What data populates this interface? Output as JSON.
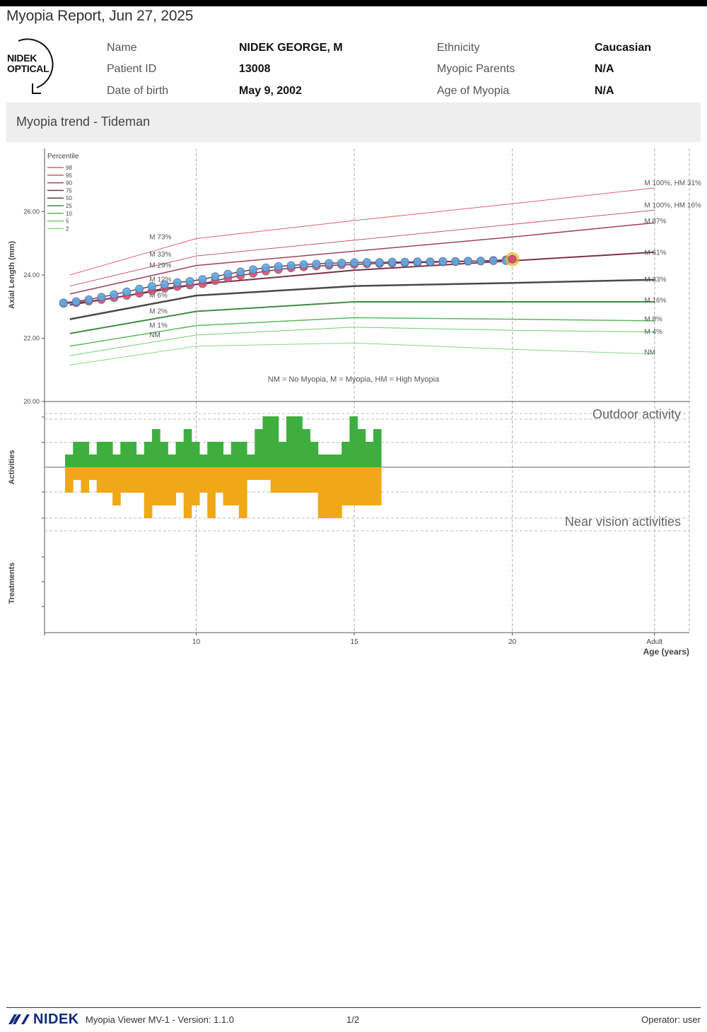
{
  "header": {
    "title": "Myopia Report, Jun 27, 2025",
    "logo_line1": "NIDEK",
    "logo_line2": "OPTICAL"
  },
  "patient": {
    "name_label": "Name",
    "name_value": "NIDEK GEORGE, M",
    "id_label": "Patient ID",
    "id_value": "13008",
    "dob_label": "Date of birth",
    "dob_value": "May 9, 2002",
    "ethnicity_label": "Ethnicity",
    "ethnicity_value": "Caucasian",
    "parents_label": "Myopic Parents",
    "parents_value": "N/A",
    "age_myopia_label": "Age of Myopia",
    "age_myopia_value": "N/A"
  },
  "section": {
    "title": "Myopia trend - Tideman"
  },
  "chart_data": {
    "type": "line",
    "title": "Myopia trend - Tideman",
    "xlabel": "Age (years)",
    "ylabel": "Axial Length (mm)",
    "xlim": [
      5.2,
      25.6
    ],
    "ylim": [
      20,
      28
    ],
    "y_ticks": [
      "20.00",
      "22.00",
      "24.00",
      "26.00"
    ],
    "x_ticks": [
      "10",
      "15",
      "20",
      "Adult"
    ],
    "x_tick_values": [
      10,
      15,
      20,
      24.5
    ],
    "legend_title": "Percentile",
    "legend": [
      "98",
      "95",
      "90",
      "75",
      "50",
      "25",
      "10",
      "5",
      "2"
    ],
    "note": "NM = No Myopia, M = Myopia, HM = High Myopia",
    "percentile_series": [
      {
        "name": "98",
        "color": "#e8606e",
        "width": 1,
        "points": [
          [
            6,
            24.0
          ],
          [
            10,
            25.15
          ],
          [
            15,
            25.72
          ],
          [
            20,
            26.25
          ],
          [
            24.5,
            26.75
          ]
        ]
      },
      {
        "name": "95",
        "color": "#c65a6e",
        "width": 1,
        "points": [
          [
            6,
            23.65
          ],
          [
            10,
            24.6
          ],
          [
            15,
            25.1
          ],
          [
            20,
            25.6
          ],
          [
            24.5,
            26.05
          ]
        ]
      },
      {
        "name": "90",
        "color": "#a04358",
        "width": 1.5,
        "points": [
          [
            6,
            23.4
          ],
          [
            10,
            24.3
          ],
          [
            15,
            24.75
          ],
          [
            20,
            25.2
          ],
          [
            24.5,
            25.65
          ]
        ]
      },
      {
        "name": "75",
        "color": "#7a3346",
        "width": 2,
        "points": [
          [
            6,
            23.05
          ],
          [
            10,
            23.7
          ],
          [
            15,
            24.15
          ],
          [
            20,
            24.45
          ],
          [
            24.5,
            24.72
          ]
        ]
      },
      {
        "name": "50",
        "color": "#4a4a4a",
        "width": 2.5,
        "points": [
          [
            6,
            22.6
          ],
          [
            10,
            23.35
          ],
          [
            15,
            23.65
          ],
          [
            20,
            23.75
          ],
          [
            24.5,
            23.85
          ]
        ]
      },
      {
        "name": "25",
        "color": "#3f8a45",
        "width": 2,
        "points": [
          [
            6,
            22.15
          ],
          [
            10,
            22.85
          ],
          [
            15,
            23.15
          ],
          [
            20,
            23.15
          ],
          [
            24.5,
            23.15
          ]
        ]
      },
      {
        "name": "10",
        "color": "#5cb85c",
        "width": 1.5,
        "points": [
          [
            6,
            21.75
          ],
          [
            10,
            22.4
          ],
          [
            15,
            22.65
          ],
          [
            20,
            22.6
          ],
          [
            24.5,
            22.55
          ]
        ]
      },
      {
        "name": "5",
        "color": "#6fcf6f",
        "width": 1,
        "points": [
          [
            6,
            21.45
          ],
          [
            10,
            22.1
          ],
          [
            15,
            22.35
          ],
          [
            20,
            22.25
          ],
          [
            24.5,
            22.2
          ]
        ]
      },
      {
        "name": "2",
        "color": "#8ad88a",
        "width": 1,
        "points": [
          [
            6,
            21.15
          ],
          [
            10,
            21.75
          ],
          [
            15,
            21.85
          ],
          [
            20,
            21.65
          ],
          [
            24.5,
            21.5
          ]
        ]
      }
    ],
    "left_annotations": [
      {
        "text": "M 73%",
        "x": 9.3,
        "y": 25.2
      },
      {
        "text": "M 33%",
        "x": 9.3,
        "y": 24.65
      },
      {
        "text": "M 29%",
        "x": 9.3,
        "y": 24.3
      },
      {
        "text": "M 12%",
        "x": 9.3,
        "y": 23.85
      },
      {
        "text": "M 6%",
        "x": 9.3,
        "y": 23.35
      },
      {
        "text": "M 2%",
        "x": 9.3,
        "y": 22.85
      },
      {
        "text": "M 1%",
        "x": 9.3,
        "y": 22.4
      },
      {
        "text": "NM",
        "x": 9.3,
        "y": 22.1
      }
    ],
    "right_annotations": [
      {
        "text": "M 100%, HM 31%",
        "x": 24.4,
        "y": 26.9
      },
      {
        "text": "M 100%, HM 16%",
        "x": 24.4,
        "y": 26.2
      },
      {
        "text": "M 87%",
        "x": 24.4,
        "y": 25.7
      },
      {
        "text": "M 61%",
        "x": 24.4,
        "y": 24.7
      },
      {
        "text": "M 33%",
        "x": 24.4,
        "y": 23.85
      },
      {
        "text": "M 16%",
        "x": 24.4,
        "y": 23.2
      },
      {
        "text": "M 8%",
        "x": 24.4,
        "y": 22.6
      },
      {
        "text": "M 4%",
        "x": 24.4,
        "y": 22.2
      },
      {
        "text": "NM",
        "x": 24.4,
        "y": 21.55
      }
    ],
    "measurement_series": [
      {
        "name": "OD",
        "color": "#e74c5e",
        "points": [
          [
            5.8,
            23.1
          ],
          [
            6.2,
            23.12
          ],
          [
            6.6,
            23.17
          ],
          [
            7.0,
            23.22
          ],
          [
            7.4,
            23.28
          ],
          [
            7.8,
            23.35
          ],
          [
            8.2,
            23.42
          ],
          [
            8.6,
            23.5
          ],
          [
            9.0,
            23.58
          ],
          [
            9.4,
            23.63
          ],
          [
            9.8,
            23.68
          ],
          [
            10.2,
            23.72
          ],
          [
            10.6,
            23.82
          ],
          [
            11.0,
            23.9
          ],
          [
            11.4,
            23.98
          ],
          [
            11.8,
            24.05
          ],
          [
            12.2,
            24.12
          ],
          [
            12.6,
            24.17
          ],
          [
            13.0,
            24.22
          ],
          [
            13.4,
            24.25
          ],
          [
            13.8,
            24.28
          ],
          [
            14.2,
            24.3
          ],
          [
            14.6,
            24.32
          ],
          [
            15.0,
            24.33
          ],
          [
            15.4,
            24.35
          ],
          [
            15.8,
            24.36
          ],
          [
            16.2,
            24.37
          ],
          [
            16.6,
            24.38
          ],
          [
            17.0,
            24.39
          ],
          [
            17.4,
            24.4
          ],
          [
            17.8,
            24.41
          ],
          [
            18.2,
            24.42
          ],
          [
            18.6,
            24.43
          ],
          [
            19.0,
            24.44
          ],
          [
            19.4,
            24.46
          ],
          [
            19.8,
            24.48
          ],
          [
            20.0,
            24.5
          ]
        ]
      },
      {
        "name": "OS",
        "color": "#5dade2",
        "points": [
          [
            5.8,
            23.12
          ],
          [
            6.2,
            23.16
          ],
          [
            6.6,
            23.22
          ],
          [
            7.0,
            23.3
          ],
          [
            7.4,
            23.38
          ],
          [
            7.8,
            23.47
          ],
          [
            8.2,
            23.56
          ],
          [
            8.6,
            23.64
          ],
          [
            9.0,
            23.7
          ],
          [
            9.4,
            23.76
          ],
          [
            9.8,
            23.8
          ],
          [
            10.2,
            23.86
          ],
          [
            10.6,
            23.95
          ],
          [
            11.0,
            24.03
          ],
          [
            11.4,
            24.1
          ],
          [
            11.8,
            24.17
          ],
          [
            12.2,
            24.23
          ],
          [
            12.6,
            24.27
          ],
          [
            13.0,
            24.3
          ],
          [
            13.4,
            24.33
          ],
          [
            13.8,
            24.35
          ],
          [
            14.2,
            24.37
          ],
          [
            14.6,
            24.38
          ],
          [
            15.0,
            24.39
          ],
          [
            15.4,
            24.4
          ],
          [
            15.8,
            24.4
          ],
          [
            16.2,
            24.41
          ],
          [
            16.6,
            24.41
          ],
          [
            17.0,
            24.42
          ],
          [
            17.4,
            24.42
          ],
          [
            17.8,
            24.43
          ],
          [
            18.2,
            24.43
          ],
          [
            18.6,
            24.44
          ],
          [
            19.0,
            24.44
          ],
          [
            19.4,
            24.45
          ],
          [
            19.8,
            24.45
          ]
        ]
      }
    ],
    "latest_point": {
      "x": 20.0,
      "y": 24.5,
      "color": "#f0b429"
    },
    "activities": {
      "label": "Activities",
      "outdoor_label": "Outdoor activity",
      "near_label": "Near vision activities",
      "outdoor_color": "#3eaf3e",
      "near_color": "#f0a818",
      "bin_start": 5.85,
      "bin_width": 0.25,
      "outdoor_levels": [
        1,
        2,
        2,
        1,
        2,
        2,
        1,
        2,
        2,
        1,
        2,
        3,
        2,
        1,
        2,
        3,
        2,
        1,
        2,
        2,
        1,
        2,
        2,
        1,
        3,
        4,
        4,
        2,
        4,
        4,
        3,
        2,
        1,
        1,
        1,
        2,
        4,
        3,
        2,
        3
      ],
      "near_levels": [
        2,
        1,
        2,
        1,
        2,
        2,
        3,
        2,
        2,
        2,
        4,
        3,
        3,
        3,
        2,
        4,
        3,
        2,
        4,
        2,
        3,
        3,
        4,
        1,
        1,
        1,
        2,
        2,
        2,
        2,
        2,
        2,
        4,
        4,
        4,
        3,
        3,
        3,
        3,
        3
      ]
    },
    "treatments_label": "Treatments"
  },
  "footer": {
    "brand": "NIDEK",
    "product": "Myopia Viewer MV-1 - Version: 1.1.0",
    "page": "1/2",
    "operator": "Operator: user"
  }
}
